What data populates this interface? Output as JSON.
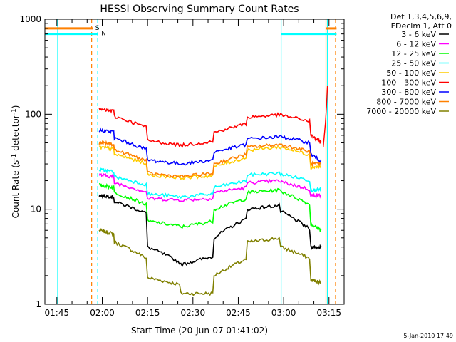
{
  "chart_data": {
    "type": "line",
    "title": "HESSI Observing Summary Count Rates",
    "xlabel": "Start Time (20-Jun-07 01:41:02)",
    "ylabel_parts": [
      "Count Rate (s",
      "-1",
      " detector",
      "-1",
      ")"
    ],
    "yscale": "log",
    "ylim": [
      1,
      1000
    ],
    "y_ticks": [
      {
        "value": 1,
        "label": "1"
      },
      {
        "value": 10,
        "label": "10"
      },
      {
        "value": 100,
        "label": "100"
      },
      {
        "value": 1000,
        "label": "1000"
      }
    ],
    "x_ticks": [
      "01:45",
      "02:00",
      "02:15",
      "02:30",
      "02:45",
      "03:00",
      "03:15"
    ],
    "xlim": [
      "01:41:02",
      "03:20:00"
    ],
    "legend_header": [
      "Det 1,3,4,5,6,9,",
      "FDecim 1, Att 0"
    ],
    "footer_date": "5-Jan-2010 17:49",
    "flags": [
      {
        "label": "S",
        "color": "#ff8000",
        "level": 800,
        "segments": [
          [
            "01:41:02",
            "01:57:00"
          ],
          [
            "03:14:00",
            "03:17:30"
          ]
        ]
      },
      {
        "label": "N",
        "color": "#00ffff",
        "level": 700,
        "segments": [
          [
            "01:41:02",
            "01:58:30"
          ],
          [
            "02:59:10",
            "03:17:30"
          ]
        ]
      }
    ],
    "markers": [
      {
        "color": "#00ffff",
        "style": "solid",
        "time": "01:41:02"
      },
      {
        "color": "#ff8000",
        "style": "dashed",
        "time": "01:56:30"
      },
      {
        "color": "#00ffff",
        "style": "dashed",
        "time": "01:58:30"
      },
      {
        "color": "#00ffff",
        "style": "solid",
        "time": "02:59:10"
      },
      {
        "color": "#ff8000",
        "style": "solid",
        "time": "03:14:00"
      },
      {
        "color": "#00ffff",
        "style": "solid",
        "time": "03:14:30"
      },
      {
        "color": "#ff8000",
        "style": "dashed",
        "time": "03:17:10"
      }
    ],
    "series": [
      {
        "name": "3 - 6 keV",
        "color": "#000000",
        "values": [
          [
            14,
            13.5
          ],
          [
            12,
            9
          ],
          [
            4,
            2.7
          ],
          [
            2.6,
            3.2
          ],
          [
            5,
            8
          ],
          [
            10,
            11
          ],
          [
            9.5,
            6
          ],
          [
            4,
            4
          ]
        ]
      },
      {
        "name": "6 - 12 keV",
        "color": "#ff00ff",
        "values": [
          [
            23,
            22
          ],
          [
            19,
            15
          ],
          [
            13,
            12.5
          ],
          [
            12.5,
            13
          ],
          [
            15,
            17
          ],
          [
            19,
            20
          ],
          [
            19.5,
            16
          ],
          [
            14,
            14
          ]
        ]
      },
      {
        "name": "12 - 25 keV",
        "color": "#00ff00",
        "values": [
          [
            18,
            17
          ],
          [
            15,
            11
          ],
          [
            7.5,
            6.6
          ],
          [
            6.5,
            7.5
          ],
          [
            10,
            13
          ],
          [
            15,
            16
          ],
          [
            15.5,
            11
          ],
          [
            7,
            6
          ]
        ]
      },
      {
        "name": "25 - 50 keV",
        "color": "#00ffff",
        "values": [
          [
            26,
            25
          ],
          [
            22,
            18
          ],
          [
            14.5,
            13.5
          ],
          [
            13.5,
            14.5
          ],
          [
            17,
            20
          ],
          [
            23,
            24
          ],
          [
            23.5,
            20
          ],
          [
            16,
            16
          ]
        ]
      },
      {
        "name": "50 - 100 keV",
        "color": "#ffcc00",
        "values": [
          [
            45,
            43
          ],
          [
            38,
            30
          ],
          [
            23,
            21.5
          ],
          [
            21.5,
            22.5
          ],
          [
            28,
            35
          ],
          [
            42,
            45
          ],
          [
            45,
            37
          ],
          [
            28,
            28
          ]
        ]
      },
      {
        "name": "100 - 300 keV",
        "color": "#ff0000",
        "values": [
          [
            112,
            108
          ],
          [
            95,
            72
          ],
          [
            53,
            47
          ],
          [
            47,
            52
          ],
          [
            64,
            80
          ],
          [
            93,
            99
          ],
          [
            98,
            84
          ],
          [
            60,
            50
          ]
        ]
      },
      {
        "name": "300 - 800 keV",
        "color": "#0000ff",
        "values": [
          [
            68,
            65
          ],
          [
            56,
            42
          ],
          [
            33,
            30
          ],
          [
            30,
            33
          ],
          [
            40,
            48
          ],
          [
            55,
            58
          ],
          [
            58,
            50
          ],
          [
            38,
            32
          ]
        ]
      },
      {
        "name": "800 - 7000 keV",
        "color": "#ff8000",
        "values": [
          [
            50,
            48
          ],
          [
            42,
            32
          ],
          [
            24,
            22
          ],
          [
            22,
            24
          ],
          [
            30,
            38
          ],
          [
            45,
            48
          ],
          [
            48,
            40
          ],
          [
            30,
            30
          ]
        ]
      },
      {
        "name": "7000 - 20000 keV",
        "color": "#808000",
        "values": [
          [
            6,
            5.5
          ],
          [
            4.5,
            3
          ],
          [
            1.9,
            1.6
          ],
          [
            1.3,
            1.3
          ],
          [
            2,
            3
          ],
          [
            4.5,
            5
          ],
          [
            4,
            3
          ],
          [
            1.8,
            1.7
          ]
        ]
      }
    ],
    "series_times": [
      "01:59:00",
      "02:04:00",
      "02:15:00",
      "02:26:00",
      "02:37:00",
      "02:48:00",
      "02:59:00",
      "03:09:00",
      "03:12:30"
    ],
    "flare_spike": {
      "time": "03:14:30",
      "values": [
        200,
        120,
        80,
        60,
        45
      ]
    }
  }
}
